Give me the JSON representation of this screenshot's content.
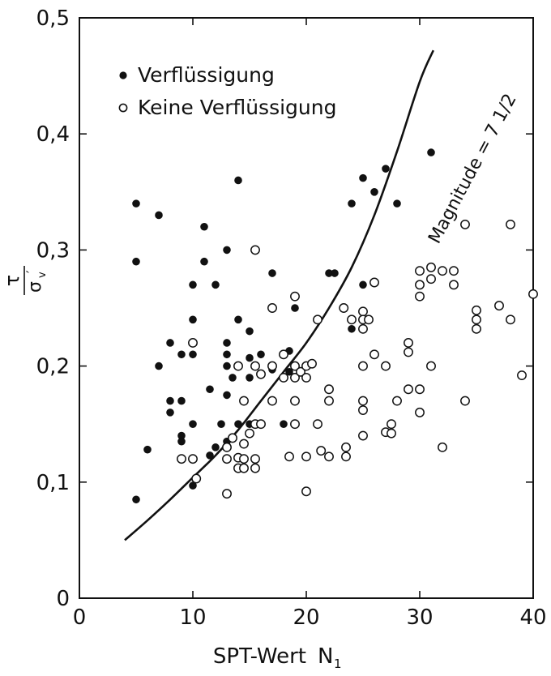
{
  "chart_data": {
    "type": "scatter",
    "title": "",
    "xlabel": "SPT-Wert",
    "xlabel_symbol": "N",
    "xlabel_subscript": "1",
    "ylabel_numerator": "τ",
    "ylabel_denominator": "σ",
    "ylabel_denominator_sub": "v",
    "ylabel_denominator_mark": "′",
    "xlim": [
      0,
      40
    ],
    "ylim": [
      0,
      0.5
    ],
    "xticks": [
      0,
      10,
      20,
      30,
      40
    ],
    "xtick_labels": [
      "0",
      "10",
      "20",
      "30",
      "40"
    ],
    "yticks": [
      0,
      0.1,
      0.2,
      0.3,
      0.4,
      0.5
    ],
    "ytick_labels": [
      "0",
      "0,1",
      "0,2",
      "0,3",
      "0,4",
      "0,5"
    ],
    "grid": false,
    "legend": {
      "placement": "top-left"
    },
    "series": [
      {
        "name": "Verflüssigung",
        "marker": "filled-circle",
        "points": [
          [
            5,
            0.34
          ],
          [
            5,
            0.29
          ],
          [
            5,
            0.085
          ],
          [
            6,
            0.128
          ],
          [
            7,
            0.33
          ],
          [
            7,
            0.2
          ],
          [
            8,
            0.22
          ],
          [
            8,
            0.17
          ],
          [
            8,
            0.16
          ],
          [
            9,
            0.21
          ],
          [
            9,
            0.17
          ],
          [
            9,
            0.14
          ],
          [
            9,
            0.135
          ],
          [
            10,
            0.27
          ],
          [
            10,
            0.24
          ],
          [
            10,
            0.21
          ],
          [
            10,
            0.15
          ],
          [
            10,
            0.097
          ],
          [
            11,
            0.32
          ],
          [
            11,
            0.29
          ],
          [
            11.5,
            0.18
          ],
          [
            11.5,
            0.123
          ],
          [
            12,
            0.27
          ],
          [
            12,
            0.13
          ],
          [
            12.5,
            0.15
          ],
          [
            13,
            0.3
          ],
          [
            13,
            0.22
          ],
          [
            13,
            0.21
          ],
          [
            13,
            0.2
          ],
          [
            13,
            0.175
          ],
          [
            13,
            0.135
          ],
          [
            13.5,
            0.19
          ],
          [
            14,
            0.36
          ],
          [
            14,
            0.24
          ],
          [
            14,
            0.15
          ],
          [
            15,
            0.23
          ],
          [
            15,
            0.207
          ],
          [
            15,
            0.19
          ],
          [
            15,
            0.15
          ],
          [
            16,
            0.21
          ],
          [
            17,
            0.28
          ],
          [
            17,
            0.197
          ],
          [
            18,
            0.15
          ],
          [
            18.5,
            0.213
          ],
          [
            18.5,
            0.195
          ],
          [
            19,
            0.25
          ],
          [
            22,
            0.28
          ],
          [
            22.5,
            0.28
          ],
          [
            24,
            0.34
          ],
          [
            24,
            0.232
          ],
          [
            25,
            0.362
          ],
          [
            25,
            0.27
          ],
          [
            26,
            0.35
          ],
          [
            27,
            0.37
          ],
          [
            28,
            0.34
          ],
          [
            31,
            0.384
          ]
        ]
      },
      {
        "name": "Keine Verflüssigung",
        "marker": "open-circle",
        "points": [
          [
            9,
            0.12
          ],
          [
            10,
            0.22
          ],
          [
            10,
            0.12
          ],
          [
            10.3,
            0.103
          ],
          [
            13,
            0.09
          ],
          [
            13,
            0.13
          ],
          [
            13,
            0.12
          ],
          [
            13.5,
            0.138
          ],
          [
            14,
            0.2
          ],
          [
            14,
            0.112
          ],
          [
            14,
            0.121
          ],
          [
            14.5,
            0.17
          ],
          [
            14.5,
            0.133
          ],
          [
            14.5,
            0.112
          ],
          [
            14.5,
            0.12
          ],
          [
            15,
            0.142
          ],
          [
            15.5,
            0.3
          ],
          [
            15.5,
            0.2
          ],
          [
            15.5,
            0.12
          ],
          [
            15.5,
            0.112
          ],
          [
            15.5,
            0.15
          ],
          [
            16,
            0.193
          ],
          [
            16,
            0.15
          ],
          [
            17,
            0.25
          ],
          [
            17,
            0.2
          ],
          [
            17,
            0.17
          ],
          [
            18,
            0.21
          ],
          [
            18,
            0.19
          ],
          [
            18.5,
            0.122
          ],
          [
            19,
            0.26
          ],
          [
            19,
            0.2
          ],
          [
            19,
            0.19
          ],
          [
            19,
            0.17
          ],
          [
            19,
            0.15
          ],
          [
            19.5,
            0.195
          ],
          [
            20,
            0.2
          ],
          [
            20,
            0.19
          ],
          [
            20,
            0.122
          ],
          [
            20,
            0.092
          ],
          [
            20.5,
            0.202
          ],
          [
            21,
            0.24
          ],
          [
            21,
            0.15
          ],
          [
            21.3,
            0.127
          ],
          [
            22,
            0.18
          ],
          [
            22,
            0.17
          ],
          [
            22,
            0.122
          ],
          [
            23.3,
            0.25
          ],
          [
            23.5,
            0.13
          ],
          [
            23.5,
            0.122
          ],
          [
            24,
            0.24
          ],
          [
            25,
            0.247
          ],
          [
            25,
            0.24
          ],
          [
            25,
            0.232
          ],
          [
            25,
            0.2
          ],
          [
            25,
            0.17
          ],
          [
            25,
            0.162
          ],
          [
            25,
            0.14
          ],
          [
            25.5,
            0.24
          ],
          [
            26,
            0.272
          ],
          [
            26,
            0.21
          ],
          [
            27,
            0.2
          ],
          [
            27,
            0.143
          ],
          [
            27.5,
            0.15
          ],
          [
            27.5,
            0.142
          ],
          [
            28,
            0.17
          ],
          [
            29,
            0.22
          ],
          [
            29,
            0.212
          ],
          [
            29,
            0.18
          ],
          [
            30,
            0.282
          ],
          [
            30,
            0.27
          ],
          [
            30,
            0.26
          ],
          [
            30,
            0.18
          ],
          [
            30,
            0.16
          ],
          [
            31,
            0.285
          ],
          [
            31,
            0.275
          ],
          [
            31,
            0.2
          ],
          [
            32,
            0.13
          ],
          [
            32,
            0.282
          ],
          [
            33,
            0.282
          ],
          [
            33,
            0.27
          ],
          [
            34,
            0.322
          ],
          [
            34,
            0.17
          ],
          [
            35,
            0.248
          ],
          [
            35,
            0.24
          ],
          [
            35,
            0.232
          ],
          [
            37,
            0.252
          ],
          [
            38,
            0.322
          ],
          [
            38,
            0.24
          ],
          [
            39,
            0.192
          ],
          [
            40,
            0.262
          ]
        ]
      }
    ],
    "curve": {
      "label": "Magnitude = 7 1/2",
      "style": "solid",
      "points": [
        [
          4,
          0.05
        ],
        [
          6,
          0.067
        ],
        [
          8,
          0.085
        ],
        [
          10,
          0.104
        ],
        [
          12,
          0.123
        ],
        [
          14,
          0.145
        ],
        [
          16,
          0.17
        ],
        [
          18,
          0.195
        ],
        [
          20,
          0.22
        ],
        [
          22,
          0.25
        ],
        [
          24,
          0.285
        ],
        [
          26,
          0.33
        ],
        [
          28,
          0.385
        ],
        [
          30,
          0.445
        ],
        [
          31.2,
          0.472
        ]
      ]
    }
  }
}
